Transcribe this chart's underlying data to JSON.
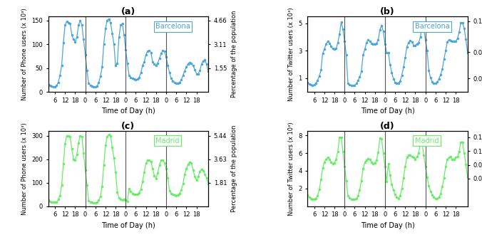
{
  "title_a": "(a)",
  "title_b": "(b)",
  "title_c": "(c)",
  "title_d": "(d)",
  "label_barcelona": "Barcelona",
  "label_madrid": "Madrid",
  "color_blue": "#4da6d9",
  "color_green": "#66ee66",
  "xlabel": "Time of Day (h)",
  "ylabel_phone": "Number of Phone users (x 10³)",
  "ylabel_twitter": "Number of Twitter users (x 10³)",
  "ylabel_right_pct": "Percentage of the population",
  "figsize": [
    6.76,
    3.33
  ],
  "dpi": 100,
  "phone_bcn_y": [
    15,
    13,
    12,
    11,
    10,
    13,
    20,
    35,
    55,
    103,
    140,
    148,
    145,
    143,
    120,
    110,
    105,
    115,
    140,
    150,
    140,
    110,
    78,
    45,
    18,
    14,
    12,
    11,
    10,
    12,
    19,
    33,
    52,
    100,
    133,
    150,
    153,
    145,
    123,
    100,
    55,
    60,
    115,
    140,
    143,
    120,
    88,
    60,
    35,
    30,
    28,
    27,
    26,
    27,
    30,
    40,
    55,
    63,
    78,
    85,
    87,
    82,
    63,
    58,
    55,
    60,
    70,
    80,
    87,
    85,
    73,
    55,
    40,
    28,
    23,
    20,
    18,
    18,
    20,
    25,
    35,
    44,
    52,
    59,
    62,
    60,
    55,
    47,
    38,
    37,
    45,
    58,
    65,
    67,
    58,
    43,
    30
  ],
  "twitter_bcn_y": [
    0.7,
    0.55,
    0.5,
    0.48,
    0.5,
    0.62,
    0.85,
    1.15,
    1.6,
    2.8,
    3.1,
    3.5,
    3.7,
    3.55,
    3.35,
    3.15,
    3.1,
    3.15,
    3.6,
    4.2,
    5.1,
    4.6,
    3.7,
    2.7,
    0.65,
    0.52,
    0.48,
    0.47,
    0.48,
    0.6,
    0.82,
    1.1,
    1.5,
    2.7,
    3.1,
    3.6,
    3.8,
    3.7,
    3.55,
    3.5,
    3.5,
    3.55,
    3.8,
    4.55,
    4.85,
    4.4,
    3.5,
    2.85,
    2.85,
    2.0,
    1.4,
    0.95,
    0.7,
    0.6,
    0.65,
    0.8,
    1.2,
    1.8,
    2.5,
    3.3,
    3.6,
    3.75,
    3.65,
    3.4,
    3.4,
    3.5,
    3.6,
    4.0,
    4.85,
    4.6,
    3.8,
    3.0,
    1.55,
    1.05,
    0.75,
    0.62,
    0.62,
    0.72,
    0.95,
    1.25,
    1.65,
    2.4,
    3.0,
    3.65,
    3.8,
    3.75,
    3.7,
    3.7,
    3.7,
    3.9,
    4.35,
    5.05,
    5.05,
    4.65,
    3.85,
    2.85
  ],
  "phone_mad_y": [
    25,
    20,
    18,
    17,
    16,
    18,
    28,
    45,
    90,
    180,
    265,
    300,
    300,
    295,
    245,
    200,
    195,
    220,
    270,
    300,
    295,
    225,
    155,
    90,
    22,
    18,
    16,
    15,
    14,
    16,
    25,
    42,
    85,
    175,
    258,
    295,
    305,
    300,
    250,
    205,
    145,
    60,
    35,
    30,
    25,
    30,
    25,
    20,
    75,
    62,
    55,
    52,
    50,
    52,
    58,
    72,
    105,
    145,
    183,
    195,
    195,
    190,
    160,
    130,
    118,
    140,
    175,
    195,
    195,
    185,
    160,
    120,
    65,
    55,
    50,
    47,
    45,
    48,
    55,
    68,
    95,
    135,
    160,
    178,
    188,
    183,
    155,
    125,
    110,
    125,
    148,
    157,
    150,
    135,
    120,
    95
  ],
  "twitter_mad_y": [
    1.3,
    1.0,
    0.85,
    0.82,
    0.8,
    0.9,
    1.2,
    1.9,
    3.0,
    4.3,
    5.0,
    5.3,
    5.5,
    5.3,
    5.0,
    4.8,
    4.9,
    5.3,
    6.2,
    7.8,
    7.8,
    6.2,
    4.5,
    2.9,
    1.2,
    0.95,
    0.82,
    0.8,
    0.78,
    0.88,
    1.15,
    1.85,
    2.9,
    4.2,
    4.95,
    5.2,
    5.4,
    5.25,
    5.0,
    4.8,
    4.9,
    5.2,
    6.1,
    7.7,
    7.6,
    6.0,
    4.5,
    2.8,
    4.8,
    3.5,
    2.5,
    1.8,
    1.35,
    1.0,
    0.88,
    1.2,
    2.0,
    3.2,
    4.5,
    5.5,
    5.8,
    5.8,
    5.6,
    5.5,
    5.3,
    5.6,
    6.0,
    7.2,
    7.2,
    5.8,
    4.5,
    3.3,
    2.3,
    1.7,
    1.3,
    1.05,
    0.88,
    0.9,
    1.0,
    1.4,
    2.2,
    3.2,
    4.5,
    5.3,
    5.5,
    5.6,
    5.3,
    5.3,
    5.5,
    5.6,
    6.2,
    7.2,
    7.2,
    6.0,
    4.7,
    3.3
  ]
}
